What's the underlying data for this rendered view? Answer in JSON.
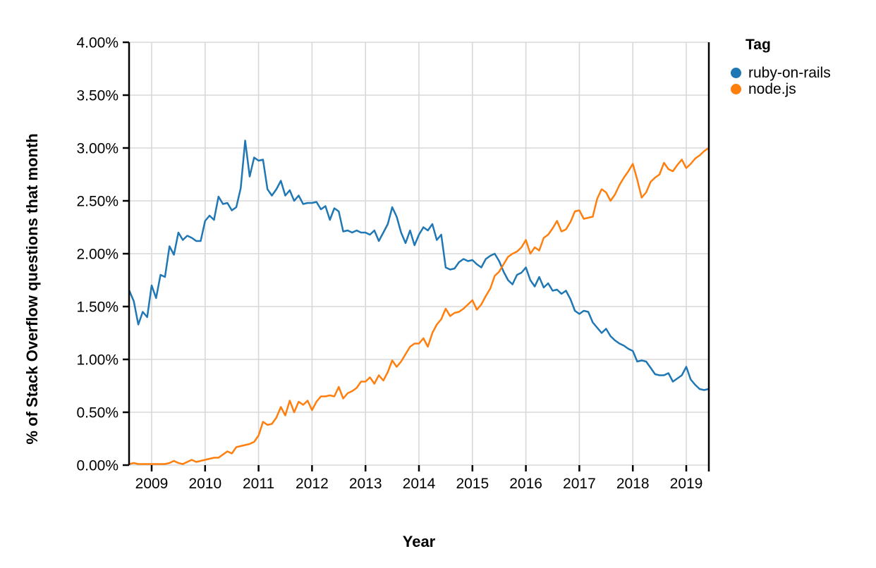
{
  "legend": {
    "title": "Tag",
    "items": [
      {
        "label": "ruby-on-rails",
        "color": "#1f77b4"
      },
      {
        "label": "node.js",
        "color": "#ff7f0e"
      }
    ]
  },
  "chart_data": {
    "type": "line",
    "title": "",
    "xlabel": "Year",
    "ylabel": "% of Stack Overflow questions that month",
    "frequency": "monthly",
    "x_start_month": "2008-08",
    "x_end_month": "2019-06",
    "xlim": [
      2008.58,
      2019.42
    ],
    "ylim": [
      0,
      4
    ],
    "grid": true,
    "legend_position": "right",
    "x_ticks": [
      {
        "value": 2009,
        "label": "2009"
      },
      {
        "value": 2010,
        "label": "2010"
      },
      {
        "value": 2011,
        "label": "2011"
      },
      {
        "value": 2012,
        "label": "2012"
      },
      {
        "value": 2013,
        "label": "2013"
      },
      {
        "value": 2014,
        "label": "2014"
      },
      {
        "value": 2015,
        "label": "2015"
      },
      {
        "value": 2016,
        "label": "2016"
      },
      {
        "value": 2017,
        "label": "2017"
      },
      {
        "value": 2018,
        "label": "2018"
      },
      {
        "value": 2019,
        "label": "2019"
      }
    ],
    "y_ticks": [
      {
        "value": 0.0,
        "label": "0.00%"
      },
      {
        "value": 0.5,
        "label": "0.50%"
      },
      {
        "value": 1.0,
        "label": "1.00%"
      },
      {
        "value": 1.5,
        "label": "1.50%"
      },
      {
        "value": 2.0,
        "label": "2.00%"
      },
      {
        "value": 2.5,
        "label": "2.50%"
      },
      {
        "value": 3.0,
        "label": "3.00%"
      },
      {
        "value": 3.5,
        "label": "3.50%"
      },
      {
        "value": 4.0,
        "label": "4.00%"
      }
    ],
    "series": [
      {
        "name": "ruby-on-rails",
        "color": "#1f77b4",
        "values": [
          1.65,
          1.55,
          1.33,
          1.45,
          1.4,
          1.7,
          1.58,
          1.8,
          1.78,
          2.07,
          1.99,
          2.2,
          2.13,
          2.17,
          2.15,
          2.12,
          2.12,
          2.31,
          2.36,
          2.32,
          2.54,
          2.47,
          2.48,
          2.41,
          2.44,
          2.62,
          3.07,
          2.73,
          2.91,
          2.88,
          2.89,
          2.61,
          2.55,
          2.61,
          2.69,
          2.55,
          2.6,
          2.5,
          2.55,
          2.47,
          2.48,
          2.48,
          2.49,
          2.42,
          2.45,
          2.32,
          2.43,
          2.4,
          2.21,
          2.22,
          2.2,
          2.22,
          2.2,
          2.2,
          2.18,
          2.22,
          2.12,
          2.2,
          2.28,
          2.44,
          2.35,
          2.2,
          2.1,
          2.22,
          2.08,
          2.18,
          2.25,
          2.22,
          2.28,
          2.13,
          2.18,
          1.87,
          1.85,
          1.86,
          1.92,
          1.95,
          1.93,
          1.94,
          1.9,
          1.87,
          1.95,
          1.98,
          2.0,
          1.93,
          1.83,
          1.75,
          1.71,
          1.8,
          1.82,
          1.87,
          1.75,
          1.69,
          1.78,
          1.68,
          1.72,
          1.65,
          1.66,
          1.62,
          1.65,
          1.57,
          1.46,
          1.43,
          1.46,
          1.45,
          1.35,
          1.3,
          1.25,
          1.29,
          1.22,
          1.18,
          1.15,
          1.13,
          1.1,
          1.08,
          0.98,
          0.99,
          0.98,
          0.92,
          0.86,
          0.85,
          0.85,
          0.87,
          0.79,
          0.82,
          0.85,
          0.93,
          0.81,
          0.76,
          0.72,
          0.71,
          0.72
        ]
      },
      {
        "name": "node.js",
        "color": "#ff7f0e",
        "values": [
          0.01,
          0.02,
          0.01,
          0.01,
          0.01,
          0.01,
          0.01,
          0.01,
          0.01,
          0.02,
          0.04,
          0.02,
          0.01,
          0.03,
          0.05,
          0.03,
          0.04,
          0.05,
          0.06,
          0.07,
          0.07,
          0.1,
          0.13,
          0.11,
          0.17,
          0.18,
          0.19,
          0.2,
          0.22,
          0.28,
          0.41,
          0.38,
          0.39,
          0.45,
          0.55,
          0.47,
          0.61,
          0.5,
          0.6,
          0.57,
          0.61,
          0.52,
          0.6,
          0.65,
          0.65,
          0.66,
          0.65,
          0.74,
          0.63,
          0.68,
          0.7,
          0.73,
          0.79,
          0.79,
          0.83,
          0.77,
          0.85,
          0.8,
          0.88,
          0.99,
          0.93,
          0.98,
          1.05,
          1.12,
          1.15,
          1.15,
          1.2,
          1.12,
          1.25,
          1.33,
          1.38,
          1.48,
          1.41,
          1.44,
          1.45,
          1.48,
          1.52,
          1.56,
          1.47,
          1.52,
          1.6,
          1.67,
          1.79,
          1.83,
          1.9,
          1.97,
          2.0,
          2.02,
          2.06,
          2.13,
          2.0,
          2.06,
          2.03,
          2.15,
          2.18,
          2.24,
          2.31,
          2.21,
          2.23,
          2.3,
          2.4,
          2.41,
          2.33,
          2.34,
          2.35,
          2.52,
          2.61,
          2.58,
          2.5,
          2.56,
          2.65,
          2.72,
          2.78,
          2.85,
          2.7,
          2.53,
          2.58,
          2.68,
          2.72,
          2.75,
          2.86,
          2.8,
          2.78,
          2.84,
          2.89,
          2.81,
          2.85,
          2.9,
          2.93,
          2.97,
          3.0
        ]
      }
    ]
  }
}
